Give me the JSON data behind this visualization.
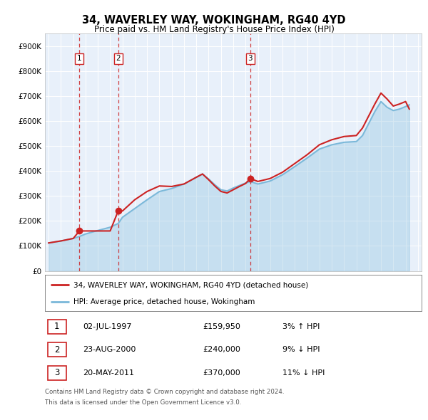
{
  "title": "34, WAVERLEY WAY, WOKINGHAM, RG40 4YD",
  "subtitle": "Price paid vs. HM Land Registry's House Price Index (HPI)",
  "transactions": [
    {
      "num": 1,
      "date_label": "02-JUL-1997",
      "price": 159950,
      "year": 1997.5,
      "pct": "3%",
      "dir": "↑"
    },
    {
      "num": 2,
      "date_label": "23-AUG-2000",
      "price": 240000,
      "year": 2000.65,
      "pct": "9%",
      "dir": "↓"
    },
    {
      "num": 3,
      "date_label": "20-MAY-2011",
      "price": 370000,
      "year": 2011.38,
      "pct": "11%",
      "dir": "↓"
    }
  ],
  "legend_house": "34, WAVERLEY WAY, WOKINGHAM, RG40 4YD (detached house)",
  "legend_hpi": "HPI: Average price, detached house, Wokingham",
  "footer1": "Contains HM Land Registry data © Crown copyright and database right 2024.",
  "footer2": "This data is licensed under the Open Government Licence v3.0.",
  "hpi_color": "#7ab8d9",
  "price_color": "#cc2222",
  "bg_color": "#e8f0fa",
  "grid_color": "#ffffff",
  "ylim": [
    0,
    950000
  ],
  "yticks": [
    0,
    100000,
    200000,
    300000,
    400000,
    500000,
    600000,
    700000,
    800000,
    900000
  ],
  "ytick_labels": [
    "£0",
    "£100K",
    "£200K",
    "£300K",
    "£400K",
    "£500K",
    "£600K",
    "£700K",
    "£800K",
    "£900K"
  ],
  "hpi_years": [
    1995,
    1996,
    1997,
    1997.5,
    1998,
    1999,
    2000,
    2000.65,
    2001,
    2002,
    2003,
    2004,
    2005,
    2006,
    2007,
    2007.5,
    2008,
    2008.5,
    2009,
    2009.5,
    2010,
    2010.5,
    2011,
    2011.38,
    2012,
    2013,
    2014,
    2015,
    2016,
    2017,
    2018,
    2019,
    2020,
    2020.5,
    2021,
    2021.5,
    2022,
    2022.5,
    2023,
    2023.5,
    2024,
    2024.3
  ],
  "hpi_values": [
    112000,
    120000,
    130000,
    138000,
    148000,
    162000,
    175000,
    190000,
    215000,
    250000,
    285000,
    318000,
    330000,
    348000,
    375000,
    388000,
    368000,
    345000,
    325000,
    320000,
    332000,
    342000,
    352000,
    358000,
    348000,
    360000,
    385000,
    418000,
    452000,
    488000,
    505000,
    515000,
    518000,
    542000,
    590000,
    638000,
    678000,
    655000,
    642000,
    648000,
    658000,
    665000
  ],
  "price_years": [
    1995,
    1996,
    1997,
    1997.5,
    1998,
    1999,
    2000,
    2000.65,
    2001,
    2002,
    2003,
    2004,
    2005,
    2006,
    2007,
    2007.5,
    2008,
    2008.5,
    2009,
    2009.5,
    2010,
    2010.5,
    2011,
    2011.38,
    2012,
    2013,
    2014,
    2015,
    2016,
    2017,
    2018,
    2019,
    2020,
    2020.5,
    2021,
    2021.5,
    2022,
    2022.5,
    2023,
    2023.5,
    2024,
    2024.3
  ],
  "price_values": [
    112000,
    120000,
    130000,
    159950,
    159950,
    159950,
    159950,
    240000,
    240000,
    285000,
    318000,
    340000,
    338000,
    348000,
    375000,
    388000,
    365000,
    340000,
    318000,
    312000,
    325000,
    338000,
    350000,
    370000,
    358000,
    370000,
    395000,
    430000,
    465000,
    505000,
    525000,
    538000,
    542000,
    572000,
    620000,
    668000,
    712000,
    688000,
    660000,
    668000,
    678000,
    648000
  ],
  "xlim": [
    1994.7,
    2025.3
  ],
  "xtick_years": [
    1995,
    1996,
    1997,
    1998,
    1999,
    2000,
    2001,
    2002,
    2003,
    2004,
    2005,
    2006,
    2007,
    2008,
    2009,
    2010,
    2011,
    2012,
    2013,
    2014,
    2015,
    2016,
    2017,
    2018,
    2019,
    2020,
    2021,
    2022,
    2023,
    2024,
    2025
  ]
}
